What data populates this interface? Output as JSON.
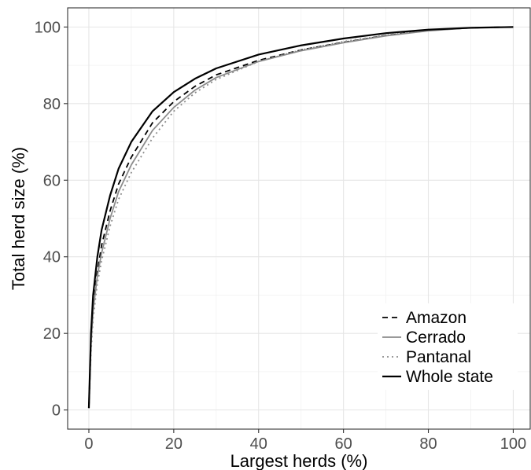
{
  "chart_data": {
    "type": "line",
    "title": "",
    "xlabel": "Largest herds (%)",
    "ylabel": "Total herd size (%)",
    "xlim": [
      -5,
      104
    ],
    "ylim": [
      -5,
      105
    ],
    "xticks": [
      0,
      20,
      40,
      60,
      80,
      100
    ],
    "yticks": [
      0,
      20,
      40,
      60,
      80,
      100
    ],
    "grid": true,
    "legend_position": "bottom-right",
    "series": [
      {
        "name": "Amazon",
        "style": "dashed",
        "color": "#000000",
        "x": [
          0,
          0.5,
          1,
          2,
          3,
          5,
          7,
          10,
          15,
          20,
          25,
          30,
          40,
          50,
          60,
          70,
          80,
          90,
          100
        ],
        "y": [
          0.5,
          18,
          27,
          36,
          43,
          52,
          59,
          66,
          75,
          80.5,
          84.5,
          87.5,
          91.3,
          94,
          96,
          97.8,
          99.1,
          99.8,
          100
        ]
      },
      {
        "name": "Cerrado",
        "style": "solid",
        "color": "#8c8c8c",
        "x": [
          0,
          0.5,
          1,
          2,
          3,
          5,
          7,
          10,
          15,
          20,
          25,
          30,
          40,
          50,
          60,
          70,
          80,
          90,
          100
        ],
        "y": [
          0.5,
          17,
          26,
          35,
          41,
          50,
          57,
          64,
          73,
          79,
          83.5,
          86.8,
          91,
          93.8,
          95.9,
          97.7,
          99,
          99.8,
          100
        ]
      },
      {
        "name": "Pantanal",
        "style": "dotted",
        "color": "#8c8c8c",
        "x": [
          0,
          0.5,
          1,
          2,
          3,
          5,
          7,
          10,
          15,
          20,
          25,
          30,
          40,
          50,
          60,
          70,
          80,
          90,
          100
        ],
        "y": [
          0.5,
          15,
          24,
          33,
          39,
          48,
          55,
          62,
          71,
          78,
          82.8,
          86.3,
          91,
          94,
          96.2,
          97.9,
          99.2,
          99.8,
          100
        ]
      },
      {
        "name": "Whole state",
        "style": "solid",
        "color": "#000000",
        "x": [
          0,
          0.5,
          1,
          2,
          3,
          5,
          7,
          10,
          15,
          20,
          25,
          30,
          40,
          50,
          60,
          70,
          80,
          90,
          100
        ],
        "y": [
          0.5,
          20,
          30,
          40,
          47,
          56,
          63,
          70,
          78,
          83,
          86.5,
          89.2,
          92.8,
          95.2,
          97,
          98.4,
          99.3,
          99.8,
          100
        ]
      }
    ]
  }
}
